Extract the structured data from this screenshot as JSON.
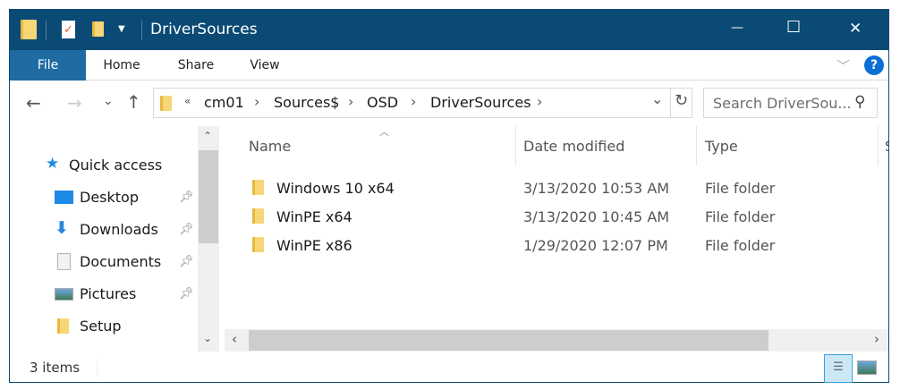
{
  "window": {
    "title": "DriverSources",
    "minimize": "—",
    "maximize": "☐",
    "close": "✕"
  },
  "ribbon": {
    "tabs": [
      "File",
      "Home",
      "Share",
      "View"
    ],
    "help": "?",
    "collapse": "﹀"
  },
  "address": {
    "overflow": "«",
    "crumbs": [
      "cm01",
      "Sources$",
      "OSD",
      "DriverSources"
    ],
    "separator": "›",
    "refresh": "↻",
    "dropdown": "⌄"
  },
  "nav": {
    "back": "←",
    "forward": "→",
    "recent": "⌄",
    "up": "↑"
  },
  "search": {
    "placeholder": "Search DriverSou...",
    "icon": "⚲"
  },
  "sidebar": {
    "quick_access": "Quick access",
    "items": [
      {
        "label": "Desktop",
        "icon": "desktop-icon",
        "pinned": true
      },
      {
        "label": "Downloads",
        "icon": "downloads-icon",
        "pinned": true
      },
      {
        "label": "Documents",
        "icon": "documents-icon",
        "pinned": true
      },
      {
        "label": "Pictures",
        "icon": "pictures-icon",
        "pinned": true
      },
      {
        "label": "Setup",
        "icon": "folder-icon",
        "pinned": false
      }
    ]
  },
  "columns": {
    "name": "Name",
    "date": "Date modified",
    "type": "Type",
    "size": "S"
  },
  "files": [
    {
      "name": "Windows 10 x64",
      "date": "3/13/2020 10:53 AM",
      "type": "File folder"
    },
    {
      "name": "WinPE x64",
      "date": "3/13/2020 10:45 AM",
      "type": "File folder"
    },
    {
      "name": "WinPE x86",
      "date": "1/29/2020 12:07 PM",
      "type": "File folder"
    }
  ],
  "status": {
    "items": "3 items"
  },
  "colors": {
    "titlebar": "#0a4a74",
    "file_tab": "#1e6ca3",
    "accent": "#0078d7"
  }
}
